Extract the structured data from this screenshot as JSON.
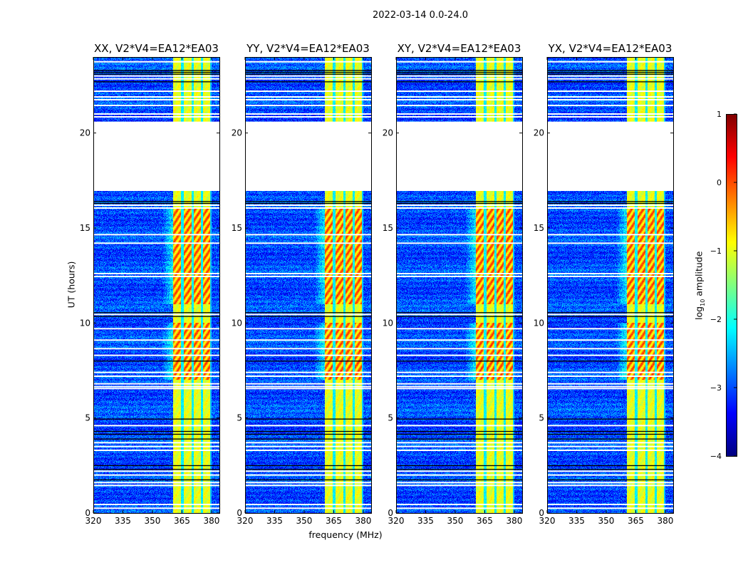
{
  "suptitle": "2022-03-14 0.0-24.0",
  "chart_data": {
    "type": "heatmap",
    "colormap": "jet",
    "panels": [
      {
        "title": "XX, V2*V4=EA12*EA03"
      },
      {
        "title": "YY, V2*V4=EA12*EA03"
      },
      {
        "title": "XY, V2*V4=EA12*EA03"
      },
      {
        "title": "YX, V2*V4=EA12*EA03"
      }
    ],
    "xlabel": "frequency (MHz)",
    "ylabel": "UT (hours)",
    "xlim": [
      320,
      384
    ],
    "ylim": [
      0,
      24
    ],
    "xticks": [
      "320",
      "335",
      "350",
      "365",
      "380"
    ],
    "xtick_values": [
      320,
      335,
      350,
      365,
      380
    ],
    "yticks": [
      "0",
      "5",
      "10",
      "15",
      "20"
    ],
    "ytick_values": [
      0,
      5,
      10,
      15,
      20
    ],
    "background_level": -3.0,
    "rfi_band": {
      "freq_range": [
        360.5,
        380.0
      ],
      "level": -1.0,
      "subband_gaps_mhz": [
        365.2,
        370.3,
        375.3
      ],
      "peak_level": 0.2,
      "peak_hours": [
        [
          7.0,
          10.0
        ],
        [
          11.0,
          16.0
        ]
      ]
    },
    "flagged_gaps_hours": [
      [
        16.95,
        20.6
      ]
    ],
    "flagged_white_lines_hours": [
      23.75,
      23.0,
      22.85,
      22.2,
      21.9,
      21.75,
      21.45,
      21.0,
      20.85,
      16.2,
      16.05,
      14.65,
      14.2,
      12.6,
      12.45,
      10.45,
      9.7,
      9.1,
      8.65,
      8.3,
      7.4,
      7.2,
      6.8,
      6.65,
      6.55,
      4.6,
      3.7,
      3.5,
      3.3,
      2.2,
      2.0,
      1.6,
      1.45,
      0.45,
      0.25
    ],
    "flagged_black_lines_hours": [
      23.3,
      23.2,
      23.1,
      22.7,
      16.4,
      16.3,
      10.55,
      10.35,
      8.0,
      4.95,
      4.3,
      4.15,
      3.9,
      2.5,
      2.3,
      1.75
    ],
    "colorbar": {
      "label": "log10 amplitude",
      "label_main": "log",
      "label_sub": "10",
      "label_rest": " amplitude",
      "range": [
        -4,
        1
      ],
      "ticks": [
        "−4",
        "−3",
        "−2",
        "−1",
        "0",
        "1"
      ],
      "tick_values": [
        -4,
        -3,
        -2,
        -1,
        0,
        1
      ]
    }
  }
}
